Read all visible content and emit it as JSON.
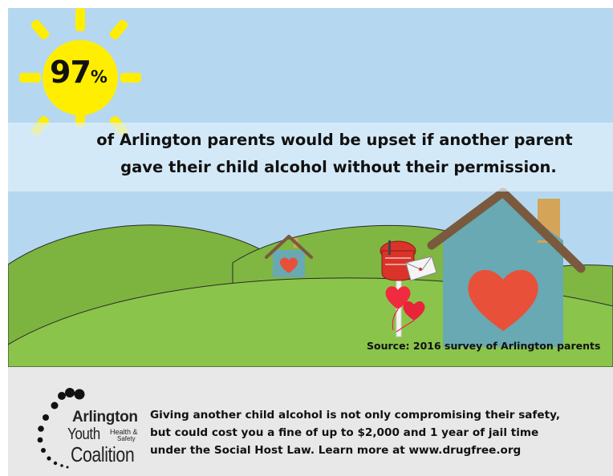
{
  "stat": {
    "number": "97",
    "percent_sign": "%"
  },
  "headline": {
    "line1": "of Arlington parents would be upset if another parent",
    "line2": "gave their child alcohol without their permission."
  },
  "source": "Source: 2016 survey of Arlington parents",
  "footer": {
    "line1": "Giving another child alcohol is not only compromising their safety,",
    "line2": "but could cost you a fine of up to $2,000 and 1 year of jail time",
    "line3": "under the Social Host Law. Learn more at www.drugfree.org"
  },
  "logo": {
    "word1": "Arlington",
    "word2": "Youth",
    "word3a": "Health &",
    "word3b": "Safety",
    "word4": "Coalition"
  },
  "icons": [
    "sun-icon",
    "small-house-icon",
    "large-house-icon",
    "mailbox-icon",
    "heart-balloons-icon",
    "letter-icon"
  ],
  "colors": {
    "sky": "#b5d8f0",
    "hill_back": "#7fb540",
    "hill_front": "#89c24a",
    "sun": "#ffee00",
    "sun_rays": "#ffee00",
    "house_wall": "#68a9b3",
    "house_roof": "#7a5a3e",
    "chimney": "#d4a458",
    "heart": "#e8503a",
    "mailbox": "#d9332a",
    "footer_bg": "#e8e8e8",
    "text": "#111111"
  }
}
